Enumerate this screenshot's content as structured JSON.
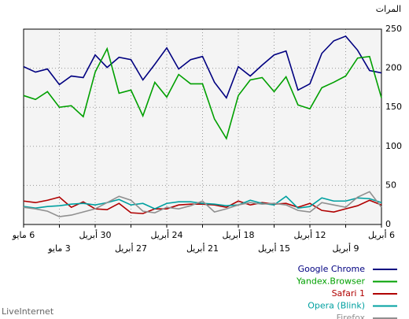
{
  "chart_data": {
    "type": "line",
    "y_axis_label": "المرات",
    "categories": [
      "6 مايو",
      null,
      null,
      "3 مايو",
      null,
      null,
      "30 أبريل",
      null,
      null,
      "27 أبريل",
      null,
      null,
      "24 أبريل",
      null,
      null,
      "21 أبريل",
      null,
      null,
      "18 أبريل",
      null,
      null,
      "15 أبريل",
      null,
      null,
      "12 أبريل",
      null,
      null,
      "9 أبريل",
      null,
      null,
      "6 أبريل"
    ],
    "series": [
      {
        "name": "Google Chrome",
        "color": "#000080",
        "values": [
          202,
          195,
          199,
          179,
          190,
          188,
          217,
          201,
          214,
          211,
          185,
          205,
          226,
          199,
          211,
          215,
          182,
          162,
          202,
          190,
          204,
          217,
          222,
          172,
          180,
          219,
          235,
          241,
          223,
          197,
          194
        ]
      },
      {
        "name": "Yandex.Browser",
        "color": "#00a000",
        "values": [
          165,
          160,
          170,
          150,
          152,
          138,
          195,
          225,
          168,
          172,
          139,
          182,
          163,
          192,
          180,
          180,
          135,
          110,
          165,
          185,
          188,
          170,
          189,
          153,
          148,
          175,
          182,
          190,
          213,
          215,
          162
        ]
      },
      {
        "name": "Safari 1",
        "color": "#b00000",
        "values": [
          30,
          28,
          31,
          35,
          22,
          29,
          20,
          19,
          27,
          15,
          14,
          20,
          20,
          25,
          26,
          26,
          25,
          22,
          30,
          25,
          28,
          26,
          27,
          22,
          27,
          18,
          16,
          20,
          24,
          31,
          25
        ]
      },
      {
        "name": "Opera (Blink)",
        "color": "#00a0a0",
        "values": [
          23,
          21,
          23,
          24,
          26,
          27,
          25,
          28,
          32,
          25,
          27,
          20,
          27,
          29,
          29,
          27,
          26,
          24,
          25,
          31,
          27,
          25,
          36,
          21,
          23,
          34,
          30,
          30,
          34,
          33,
          28
        ]
      },
      {
        "name": "Firefox",
        "color": "#909090",
        "values": [
          22,
          20,
          17,
          10,
          12,
          16,
          20,
          28,
          36,
          31,
          17,
          15,
          22,
          20,
          24,
          30,
          16,
          20,
          25,
          28,
          26,
          27,
          25,
          18,
          16,
          28,
          25,
          22,
          35,
          42,
          22
        ]
      }
    ],
    "ylim": [
      0,
      250
    ],
    "yticks": [
      0,
      50,
      100,
      150,
      200,
      250
    ],
    "grid": true,
    "footer": "LiveInternet"
  }
}
